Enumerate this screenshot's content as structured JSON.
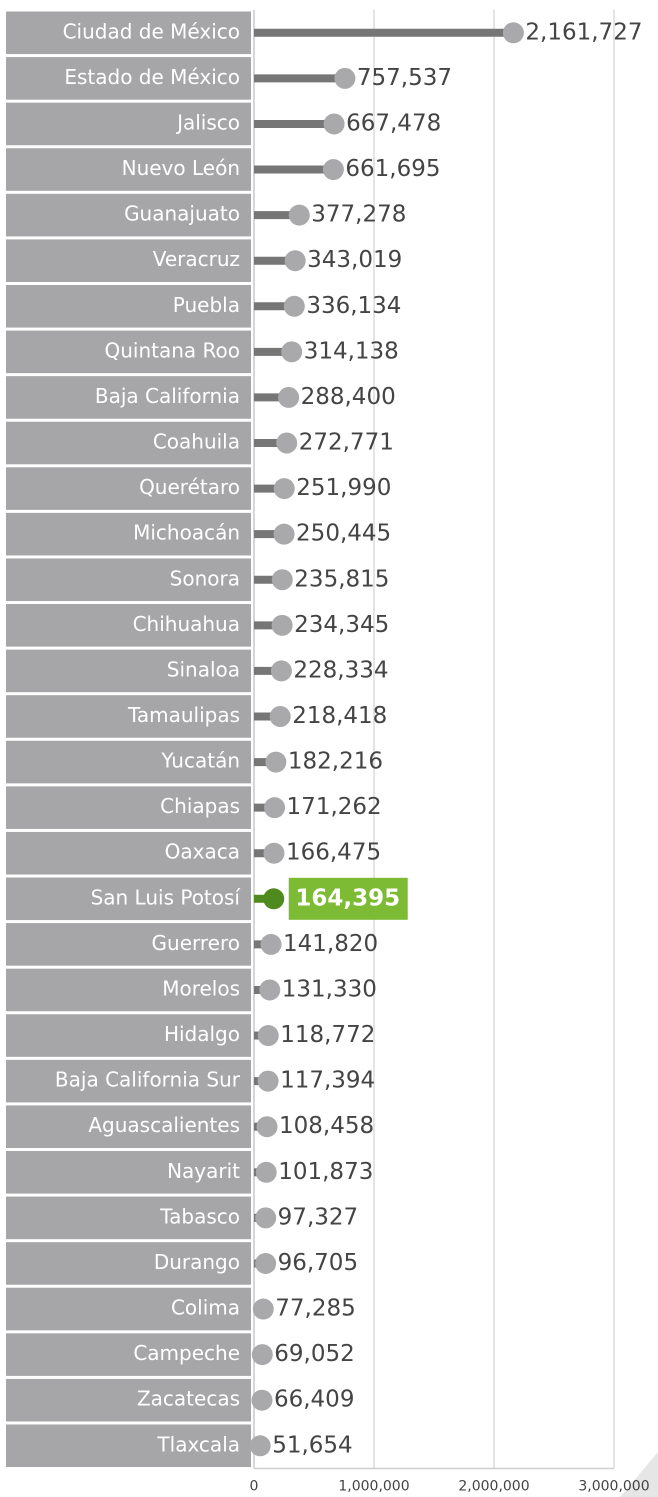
{
  "chart_data": {
    "type": "lollipop",
    "categories": [
      "Ciudad de México",
      "Estado de México",
      "Jalisco",
      "Nuevo León",
      "Guanajuato",
      "Veracruz",
      "Puebla",
      "Quintana Roo",
      "Baja California",
      "Coahuila",
      "Querétaro",
      "Michoacán",
      "Sonora",
      "Chihuahua",
      "Sinaloa",
      "Tamaulipas",
      "Yucatán",
      "Chiapas",
      "Oaxaca",
      "San Luis Potosí",
      "Guerrero",
      "Morelos",
      "Hidalgo",
      "Baja California Sur",
      "Aguascalientes",
      "Nayarit",
      "Tabasco",
      "Durango",
      "Colima",
      "Campeche",
      "Zacatecas",
      "Tlaxcala"
    ],
    "values": [
      2161727,
      757537,
      667478,
      661695,
      377278,
      343019,
      336134,
      314138,
      288400,
      272771,
      251990,
      250445,
      235815,
      234345,
      228334,
      218418,
      182216,
      171262,
      166475,
      164395,
      141820,
      131330,
      118772,
      117394,
      108458,
      101873,
      97327,
      96705,
      77285,
      69052,
      66409,
      51654
    ],
    "value_labels": [
      "2,161,727",
      "757,537",
      "667,478",
      "661,695",
      "377,278",
      "343,019",
      "336,134",
      "314,138",
      "288,400",
      "272,771",
      "251,990",
      "250,445",
      "235,815",
      "234,345",
      "228,334",
      "218,418",
      "182,216",
      "171,262",
      "166,475",
      "164,395",
      "141,820",
      "131,330",
      "118,772",
      "117,394",
      "108,458",
      "101,873",
      "97,327",
      "96,705",
      "77,285",
      "69,052",
      "66,409",
      "51,654"
    ],
    "xlim": [
      0,
      3000000
    ],
    "xticks": [
      0,
      {
        "value": 1000000,
        "label": "1,000,000"
      },
      {
        "value": 2000000,
        "label": "2,000,000"
      },
      {
        "value": 3000000,
        "label": "3,000,000"
      }
    ],
    "grid": true,
    "bar_color": "#767676",
    "dot_color": "#a9a9ab",
    "label_box_color": "#a6a6a8",
    "highlight": {
      "category": "San Luis Potosí",
      "color": "#4f8a1f",
      "label_color": "#7dbb35"
    }
  }
}
